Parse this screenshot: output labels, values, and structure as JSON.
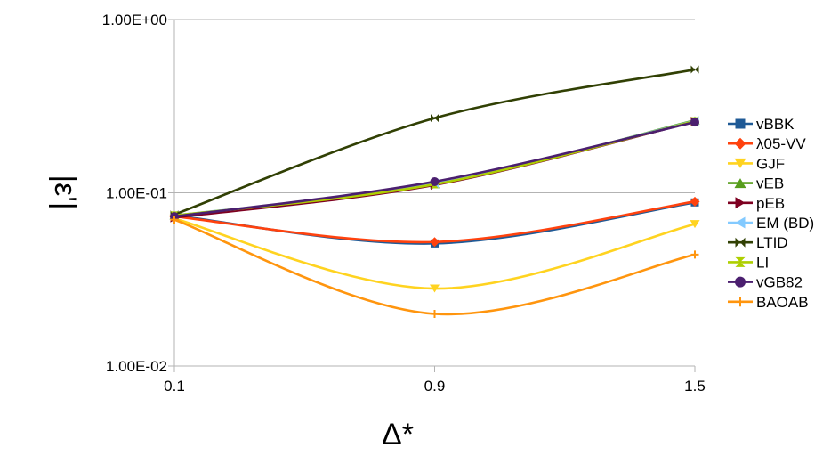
{
  "chart_data": {
    "type": "line",
    "title": "",
    "xlabel": "Δ*",
    "ylabel": "|ε'|",
    "yscale": "log",
    "ylim": [
      0.01,
      1
    ],
    "x": [
      "0.1",
      "0.9",
      "1.5"
    ],
    "yticks": [
      {
        "value": 1,
        "label": "1.00E+00"
      },
      {
        "value": 0.1,
        "label": "1.00E-01"
      },
      {
        "value": 0.01,
        "label": "1.00E-02"
      }
    ],
    "grid": "horizontal",
    "legend": "right",
    "series": [
      {
        "name": "vBBK",
        "color": "#1f5a96",
        "marker": "square",
        "values": [
          0.074,
          0.051,
          0.088
        ]
      },
      {
        "name": "λ05-VV",
        "color": "#ff420e",
        "marker": "diamond",
        "values": [
          0.073,
          0.052,
          0.089
        ]
      },
      {
        "name": "GJF",
        "color": "#ffd320",
        "marker": "triangle-down",
        "values": [
          0.071,
          0.028,
          0.066
        ]
      },
      {
        "name": "vEB",
        "color": "#579d1c",
        "marker": "triangle-up",
        "values": [
          0.074,
          0.112,
          0.262
        ]
      },
      {
        "name": "pEB",
        "color": "#7e0021",
        "marker": "triangle-right",
        "values": [
          0.072,
          0.111,
          0.258
        ]
      },
      {
        "name": "EM (BD)",
        "color": "#83caff",
        "marker": "triangle-left",
        "values": [
          0.074,
          0.113,
          0.26
        ]
      },
      {
        "name": "LTID",
        "color": "#314004",
        "marker": "bowtie",
        "values": [
          0.075,
          0.27,
          0.515
        ]
      },
      {
        "name": "LI",
        "color": "#aecf00",
        "marker": "hourglass",
        "values": [
          0.074,
          0.112,
          0.259
        ]
      },
      {
        "name": "vGB82",
        "color": "#4b1f6f",
        "marker": "circle",
        "values": [
          0.073,
          0.116,
          0.256
        ]
      },
      {
        "name": "BAOAB",
        "color": "#ff950e",
        "marker": "plus",
        "values": [
          0.07,
          0.02,
          0.044
        ]
      }
    ]
  }
}
